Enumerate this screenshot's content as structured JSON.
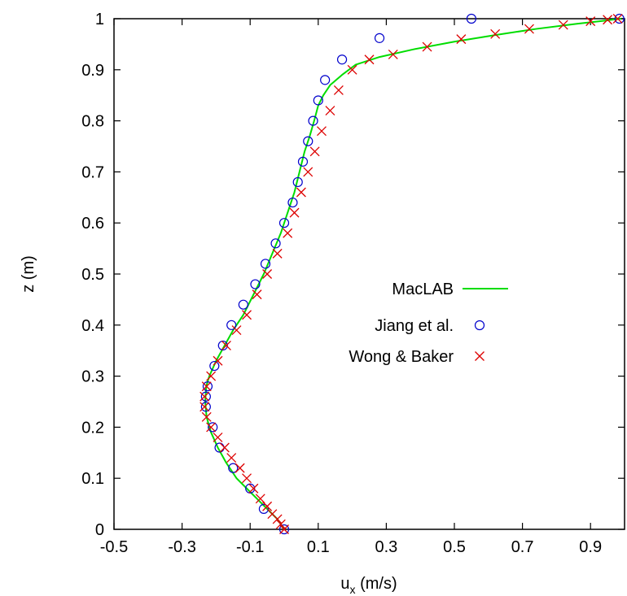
{
  "chart_data": {
    "type": "line",
    "title": "",
    "xlabel": "u",
    "xlabel_sub": "x",
    "xlabel_units": " (m/s)",
    "ylabel": "z (m)",
    "xlim": [
      -0.5,
      1.0
    ],
    "ylim": [
      0,
      1
    ],
    "x_ticks": [
      -0.5,
      -0.3,
      -0.1,
      0.1,
      0.3,
      0.5,
      0.7,
      0.9
    ],
    "x_tick_labels": [
      "-0.5",
      "-0.3",
      "-0.1",
      "0.1",
      "0.3",
      "0.5",
      "0.7",
      "0.9"
    ],
    "y_ticks": [
      0,
      0.1,
      0.2,
      0.3,
      0.4,
      0.5,
      0.6,
      0.7,
      0.8,
      0.9,
      1
    ],
    "y_tick_labels": [
      "0",
      "0.1",
      "0.2",
      "0.3",
      "0.4",
      "0.5",
      "0.6",
      "0.7",
      "0.8",
      "0.9",
      "1"
    ],
    "grid": false,
    "legend_position": "center-right",
    "series": [
      {
        "name": "MacLAB",
        "style": "line",
        "color": "#00dd00",
        "x": [
          0.0,
          -0.02,
          -0.05,
          -0.08,
          -0.11,
          -0.14,
          -0.17,
          -0.195,
          -0.215,
          -0.228,
          -0.232,
          -0.229,
          -0.22,
          -0.2,
          -0.175,
          -0.15,
          -0.12,
          -0.09,
          -0.06,
          -0.035,
          -0.01,
          0.01,
          0.03,
          0.045,
          0.06,
          0.075,
          0.088,
          0.1,
          0.115,
          0.135,
          0.17,
          0.21,
          0.28,
          0.38,
          0.5,
          0.62,
          0.74,
          0.86,
          0.94,
          0.975,
          0.99
        ],
        "y": [
          0.0,
          0.02,
          0.04,
          0.06,
          0.08,
          0.1,
          0.13,
          0.16,
          0.19,
          0.22,
          0.25,
          0.28,
          0.3,
          0.33,
          0.36,
          0.39,
          0.42,
          0.46,
          0.5,
          0.54,
          0.58,
          0.62,
          0.66,
          0.7,
          0.74,
          0.77,
          0.8,
          0.83,
          0.85,
          0.87,
          0.89,
          0.91,
          0.925,
          0.94,
          0.955,
          0.968,
          0.98,
          0.99,
          0.996,
          0.999,
          1.0
        ]
      },
      {
        "name": "Jiang et al.",
        "style": "circle",
        "color": "#0000cc",
        "x": [
          0.0,
          -0.06,
          -0.1,
          -0.15,
          -0.19,
          -0.21,
          -0.23,
          -0.23,
          -0.225,
          -0.205,
          -0.18,
          -0.155,
          -0.12,
          -0.085,
          -0.055,
          -0.025,
          0.0,
          0.025,
          0.04,
          0.055,
          0.07,
          0.085,
          0.1,
          0.12,
          0.17,
          0.28,
          0.55,
          0.985
        ],
        "y": [
          0.0,
          0.04,
          0.08,
          0.12,
          0.16,
          0.2,
          0.24,
          0.26,
          0.28,
          0.32,
          0.36,
          0.4,
          0.44,
          0.48,
          0.52,
          0.56,
          0.6,
          0.64,
          0.68,
          0.72,
          0.76,
          0.8,
          0.84,
          0.88,
          0.92,
          0.962,
          1.0,
          1.0
        ]
      },
      {
        "name": "Wong & Baker",
        "style": "cross",
        "color": "#dd0000",
        "x": [
          0.0,
          -0.01,
          -0.02,
          -0.035,
          -0.05,
          -0.07,
          -0.09,
          -0.11,
          -0.13,
          -0.155,
          -0.175,
          -0.195,
          -0.215,
          -0.228,
          -0.234,
          -0.234,
          -0.228,
          -0.215,
          -0.195,
          -0.17,
          -0.14,
          -0.11,
          -0.08,
          -0.05,
          -0.02,
          0.01,
          0.03,
          0.05,
          0.07,
          0.09,
          0.11,
          0.135,
          0.16,
          0.2,
          0.25,
          0.32,
          0.42,
          0.52,
          0.62,
          0.72,
          0.82,
          0.9,
          0.95,
          0.98
        ],
        "y": [
          0.0,
          0.01,
          0.02,
          0.03,
          0.045,
          0.06,
          0.08,
          0.1,
          0.12,
          0.14,
          0.16,
          0.18,
          0.2,
          0.22,
          0.24,
          0.26,
          0.28,
          0.3,
          0.33,
          0.36,
          0.39,
          0.42,
          0.46,
          0.5,
          0.54,
          0.58,
          0.62,
          0.66,
          0.7,
          0.74,
          0.78,
          0.82,
          0.86,
          0.9,
          0.92,
          0.93,
          0.945,
          0.96,
          0.97,
          0.98,
          0.988,
          0.995,
          0.998,
          1.0
        ]
      }
    ]
  }
}
